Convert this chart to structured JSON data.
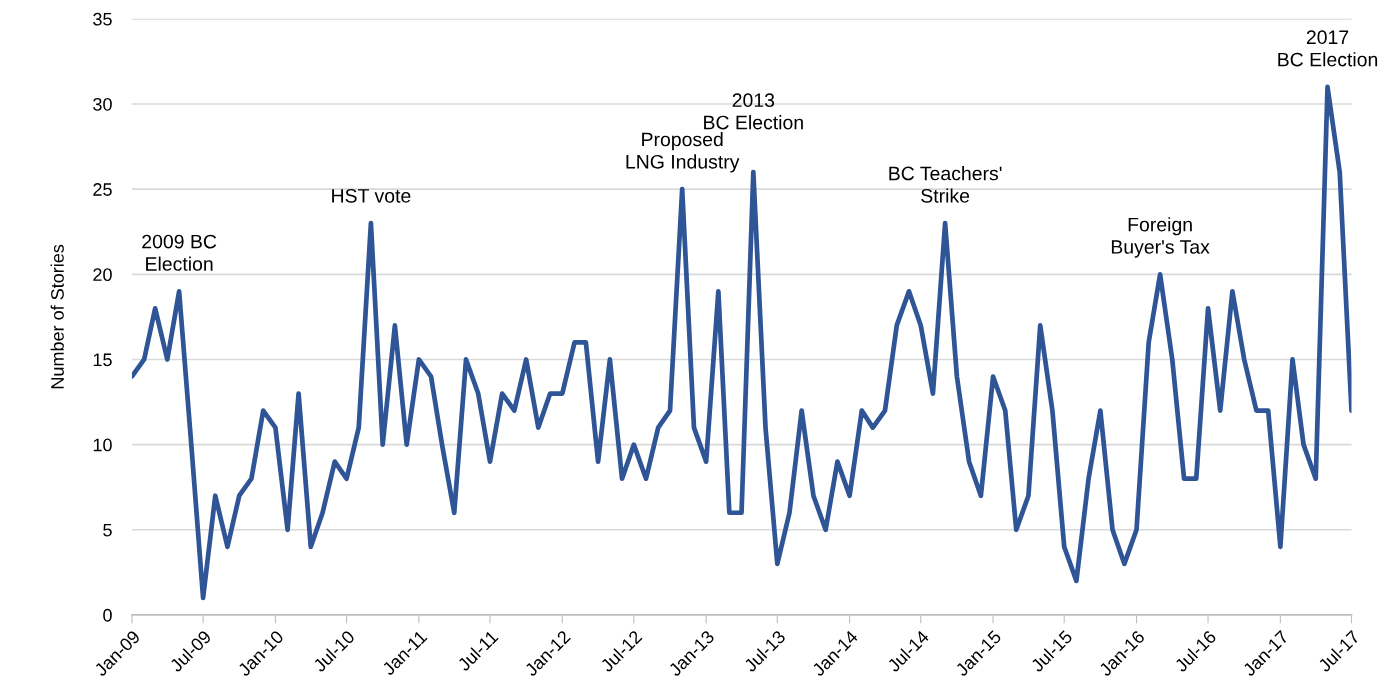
{
  "chart_data": {
    "type": "line",
    "ylabel": "Number of Stories",
    "x": [
      "2009-01",
      "2009-02",
      "2009-03",
      "2009-04",
      "2009-05",
      "2009-06",
      "2009-07",
      "2009-08",
      "2009-09",
      "2009-10",
      "2009-11",
      "2009-12",
      "2010-01",
      "2010-02",
      "2010-03",
      "2010-04",
      "2010-05",
      "2010-06",
      "2010-07",
      "2010-08",
      "2010-09",
      "2010-10",
      "2010-11",
      "2010-12",
      "2011-01",
      "2011-02",
      "2011-03",
      "2011-04",
      "2011-05",
      "2011-06",
      "2011-07",
      "2011-08",
      "2011-09",
      "2011-10",
      "2011-11",
      "2011-12",
      "2012-01",
      "2012-02",
      "2012-03",
      "2012-04",
      "2012-05",
      "2012-06",
      "2012-07",
      "2012-08",
      "2012-09",
      "2012-10",
      "2012-11",
      "2012-12",
      "2013-01",
      "2013-02",
      "2013-03",
      "2013-04",
      "2013-05",
      "2013-06",
      "2013-07",
      "2013-08",
      "2013-09",
      "2013-10",
      "2013-11",
      "2013-12",
      "2014-01",
      "2014-02",
      "2014-03",
      "2014-04",
      "2014-05",
      "2014-06",
      "2014-07",
      "2014-08",
      "2014-09",
      "2014-10",
      "2014-11",
      "2014-12",
      "2015-01",
      "2015-02",
      "2015-03",
      "2015-04",
      "2015-05",
      "2015-06",
      "2015-07",
      "2015-08",
      "2015-09",
      "2015-10",
      "2015-11",
      "2015-12",
      "2016-01",
      "2016-02",
      "2016-03",
      "2016-04",
      "2016-05",
      "2016-06",
      "2016-07",
      "2016-08",
      "2016-09",
      "2016-10",
      "2016-11",
      "2016-12",
      "2017-01",
      "2017-02",
      "2017-03",
      "2017-04",
      "2017-05",
      "2017-06",
      "2017-07"
    ],
    "series": [
      {
        "color": "#2f5597",
        "values": [
          14,
          15,
          18,
          15,
          19,
          10,
          1,
          7,
          4,
          7,
          8,
          12,
          11,
          5,
          13,
          4,
          6,
          9,
          8,
          11,
          23,
          10,
          17,
          10,
          15,
          14,
          10,
          6,
          15,
          13,
          9,
          13,
          12,
          15,
          11,
          13,
          13,
          16,
          16,
          9,
          15,
          8,
          10,
          8,
          11,
          12,
          25,
          11,
          9,
          19,
          6,
          6,
          26,
          11,
          3,
          6,
          12,
          7,
          5,
          9,
          7,
          12,
          11,
          12,
          17,
          19,
          17,
          13,
          23,
          14,
          9,
          7,
          14,
          12,
          5,
          7,
          17,
          12,
          4,
          2,
          8,
          12,
          5,
          3,
          5,
          16,
          20,
          15,
          8,
          8,
          18,
          12,
          19,
          15,
          12,
          12,
          4,
          15,
          10,
          8,
          31,
          26,
          12
        ]
      }
    ],
    "xlim": [
      "2009-01",
      "2017-07"
    ],
    "xticks": [
      {
        "value": "2009-01",
        "label": "Jan-09"
      },
      {
        "value": "2009-07",
        "label": "Jul-09"
      },
      {
        "value": "2010-01",
        "label": "Jan-10"
      },
      {
        "value": "2010-07",
        "label": "Jul-10"
      },
      {
        "value": "2011-01",
        "label": "Jan-11"
      },
      {
        "value": "2011-07",
        "label": "Jul-11"
      },
      {
        "value": "2012-01",
        "label": "Jan-12"
      },
      {
        "value": "2012-07",
        "label": "Jul-12"
      },
      {
        "value": "2013-01",
        "label": "Jan-13"
      },
      {
        "value": "2013-07",
        "label": "Jul-13"
      },
      {
        "value": "2014-01",
        "label": "Jan-14"
      },
      {
        "value": "2014-07",
        "label": "Jul-14"
      },
      {
        "value": "2015-01",
        "label": "Jan-15"
      },
      {
        "value": "2015-07",
        "label": "Jul-15"
      },
      {
        "value": "2016-01",
        "label": "Jan-16"
      },
      {
        "value": "2016-07",
        "label": "Jul-16"
      },
      {
        "value": "2017-01",
        "label": "Jan-17"
      },
      {
        "value": "2017-07",
        "label": "Jul-17"
      }
    ],
    "ylim": [
      0,
      35
    ],
    "yticks": [
      0,
      5,
      10,
      15,
      20,
      25,
      30,
      35
    ],
    "grid": "y",
    "marker": "none",
    "line_style": "solid",
    "annotations": [
      {
        "text": "2009 BC\nElection",
        "x": "2009-05",
        "y": 19
      },
      {
        "text": "HST vote",
        "x": "2010-09",
        "y": 23
      },
      {
        "text": "Proposed\nLNG Industry",
        "x": "2012-11",
        "y": 25
      },
      {
        "text": "2013\nBC Election",
        "x": "2013-05",
        "y": 26
      },
      {
        "text": "BC Teachers'\nStrike",
        "x": "2014-09",
        "y": 23
      },
      {
        "text": "Foreign\nBuyer's Tax",
        "x": "2016-03",
        "y": 20
      },
      {
        "text": "2017\nBC Election",
        "x": "2017-05",
        "y": 31
      }
    ]
  }
}
